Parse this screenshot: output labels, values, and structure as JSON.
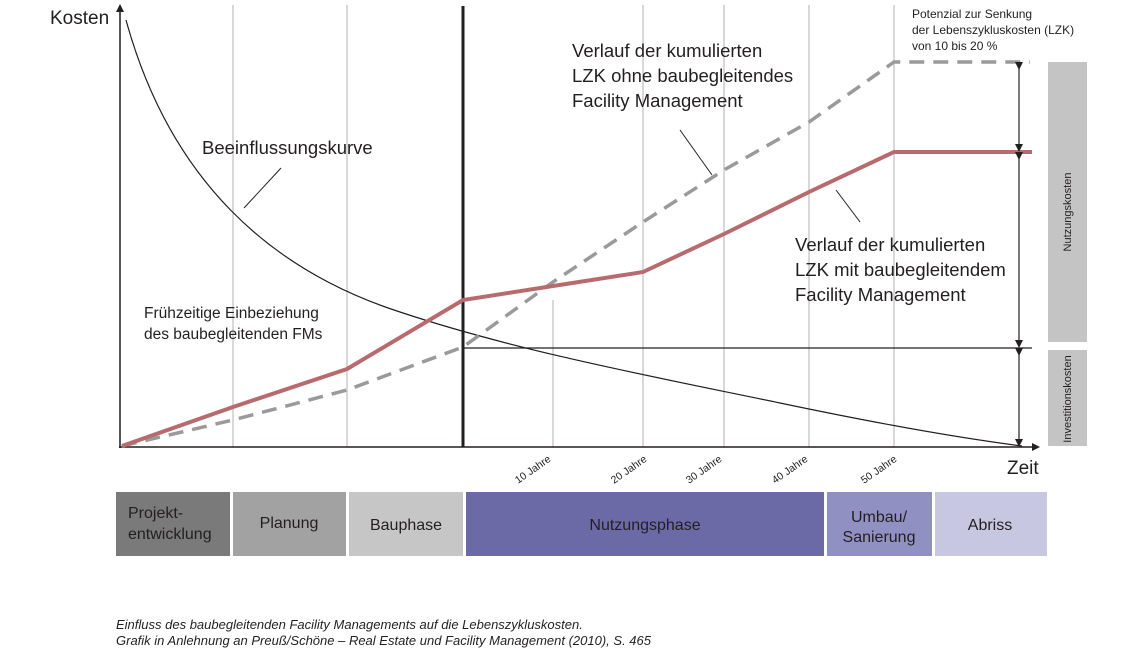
{
  "axes": {
    "y_label": "Kosten",
    "x_label": "Zeit"
  },
  "year_ticks": [
    "10 Jahre",
    "20 Jahre",
    "30 Jahre",
    "40 Jahre",
    "50 Jahre"
  ],
  "annotations": {
    "beeinflussung": "Beeinflussungskurve",
    "early_line1": "Frühzeitige Einbeziehung",
    "early_line2": "des baubegleitenden FMs",
    "ohne_line1": "Verlauf der kumulierten",
    "ohne_line2": "LZK ohne baubegleitendes",
    "ohne_line3": "Facility Management",
    "mit_line1": "Verlauf der kumulierten",
    "mit_line2": "LZK mit baubegleitendem",
    "mit_line3": "Facility Management",
    "potential_line1": "Potenzial zur Senkung",
    "potential_line2": "der Lebenszykluskosten (LZK)",
    "potential_line3": "von 10 bis 20 %"
  },
  "side_bars": {
    "upper": "Nutzungskosten",
    "lower": "Investitionskosten",
    "color": "#c4c4c4"
  },
  "phases": [
    {
      "line1": "Projekt-",
      "line2": "entwicklung",
      "color": "#7a7a7a"
    },
    {
      "line1": "Planung",
      "line2": "",
      "color": "#a2a2a2"
    },
    {
      "line1": "Bauphase",
      "line2": "",
      "color": "#c6c6c6"
    },
    {
      "line1": "Nutzungsphase",
      "line2": "",
      "color": "#6b6aa7"
    },
    {
      "line1": "Umbau/",
      "line2": "Sanierung",
      "color": "#9190c3"
    },
    {
      "line1": "Abriss",
      "line2": "",
      "color": "#c8c7e2"
    }
  ],
  "caption": {
    "line1": "Einfluss des baubegleitenden Facility Managements auf die Lebenszykluskosten.",
    "line2": "Grafik in Anlehnung an Preuß/Schöne – Real Estate und Facility Management (2010), S. 465"
  },
  "colors": {
    "with_fm": "#b86b6e",
    "without_fm": "#9a9a9a",
    "axis": "#231f20",
    "grid": "#b0b0b0"
  }
}
